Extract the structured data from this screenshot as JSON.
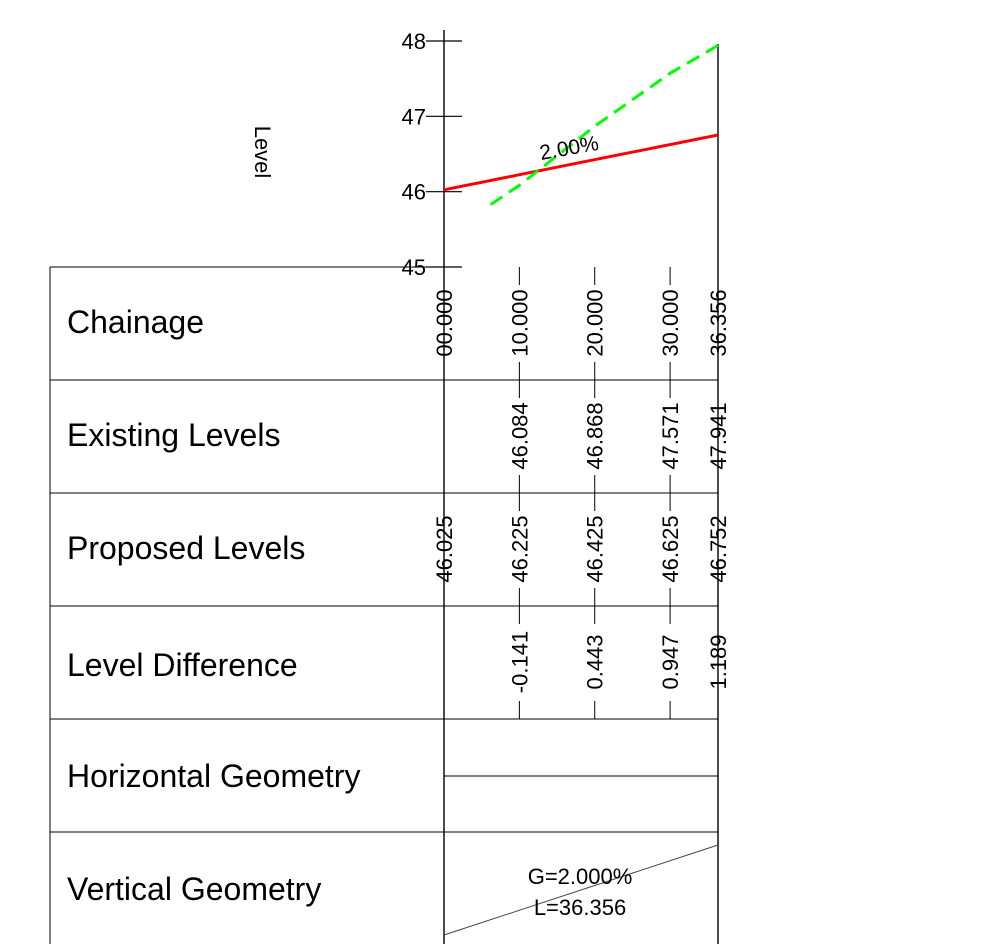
{
  "chart_data": {
    "type": "line",
    "ylabel": "Level",
    "ylim": [
      45,
      48
    ],
    "y_ticks": [
      "45",
      "46",
      "47",
      "48"
    ],
    "xlim": [
      0,
      36.356
    ],
    "grade_annotation": "2.00%",
    "series": [
      {
        "color": "#ff0000",
        "style": "solid",
        "points": [
          [
            0,
            46.025
          ],
          [
            36.356,
            46.752
          ]
        ]
      },
      {
        "color": "#00ff00",
        "style": "dashed",
        "points": [
          [
            6.2,
            45.83
          ],
          [
            10,
            46.084
          ],
          [
            20,
            46.868
          ],
          [
            30,
            47.571
          ],
          [
            36.356,
            47.941
          ]
        ]
      }
    ]
  },
  "table": {
    "chainage_label": "Chainage",
    "existing_label": "Existing Levels",
    "proposed_label": "Proposed Levels",
    "difference_label": "Level Difference",
    "horizontal_label": "Horizontal Geometry",
    "vertical_label": "Vertical Geometry",
    "chainages": [
      "00.000",
      "10.000",
      "20.000",
      "30.000",
      "36.356"
    ],
    "existing_levels": [
      "",
      "46.084",
      "46.868",
      "47.571",
      "47.941"
    ],
    "proposed_levels": [
      "46.025",
      "46.225",
      "46.425",
      "46.625",
      "46.752"
    ],
    "level_differences": [
      "",
      "-0.141",
      "0.443",
      "0.947",
      "1.189"
    ]
  },
  "vertical_geometry": {
    "grade_text": "G=2.000%",
    "length_text": "L=36.356"
  }
}
